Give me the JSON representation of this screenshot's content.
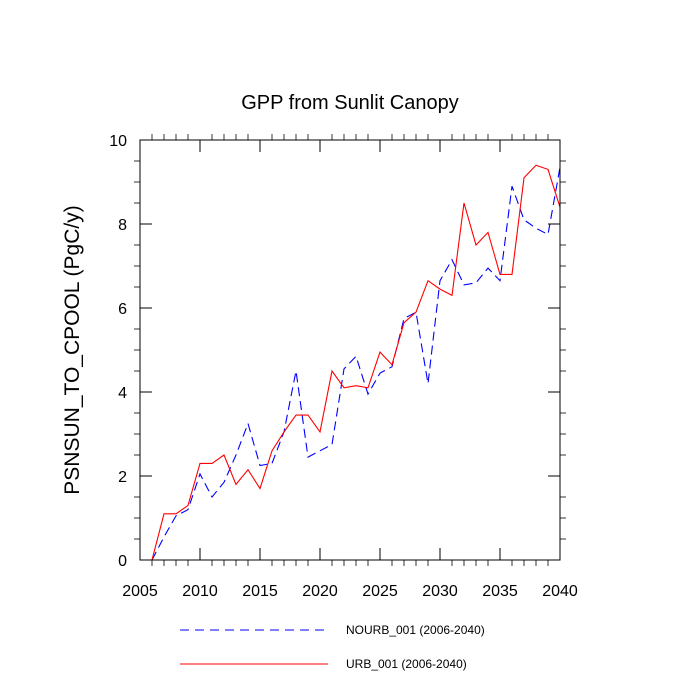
{
  "chart_data": {
    "type": "line",
    "title": "GPP from Sunlit Canopy",
    "xlabel": "",
    "ylabel": "PSNSUN_TO_CPOOL  (PgC/y)",
    "xlim": [
      2005,
      2040
    ],
    "ylim": [
      0,
      10
    ],
    "xticks": [
      2005,
      2010,
      2015,
      2020,
      2025,
      2030,
      2035,
      2040
    ],
    "yticks": [
      0,
      2,
      4,
      6,
      8,
      10
    ],
    "x": [
      2006,
      2007,
      2008,
      2009,
      2010,
      2011,
      2012,
      2013,
      2014,
      2015,
      2016,
      2017,
      2018,
      2019,
      2020,
      2021,
      2022,
      2023,
      2024,
      2025,
      2026,
      2027,
      2028,
      2029,
      2030,
      2031,
      2032,
      2033,
      2034,
      2035,
      2036,
      2037,
      2038,
      2039,
      2040
    ],
    "series": [
      {
        "name": "NOURB_001 (2006-2040)",
        "color": "#0000ff",
        "style": "dashed",
        "values": [
          0.0,
          0.55,
          1.05,
          1.2,
          2.05,
          1.5,
          1.85,
          2.5,
          3.25,
          2.25,
          2.3,
          3.05,
          4.5,
          2.45,
          2.6,
          2.75,
          4.55,
          4.85,
          3.95,
          4.45,
          4.6,
          5.75,
          5.9,
          4.2,
          6.65,
          7.15,
          6.55,
          6.6,
          6.95,
          6.65,
          8.9,
          8.1,
          7.9,
          7.75,
          9.35
        ]
      },
      {
        "name": "URB_001 (2006-2040)",
        "color": "#ff0000",
        "style": "solid",
        "values": [
          0.0,
          1.1,
          1.1,
          1.3,
          2.3,
          2.3,
          2.5,
          1.8,
          2.15,
          1.7,
          2.6,
          3.05,
          3.45,
          3.45,
          3.05,
          4.5,
          4.1,
          4.15,
          4.1,
          4.95,
          4.65,
          5.65,
          5.9,
          6.65,
          6.45,
          6.3,
          8.5,
          7.5,
          7.8,
          6.8,
          6.8,
          9.1,
          9.4,
          9.3,
          8.4
        ]
      }
    ],
    "legend": "bottom"
  }
}
